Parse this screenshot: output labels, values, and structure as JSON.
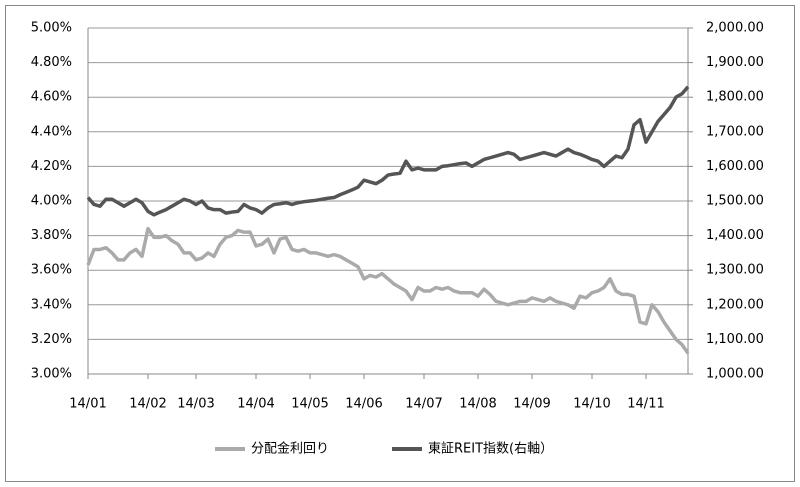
{
  "chart_data": {
    "type": "line",
    "categories": [
      "14/01",
      null,
      null,
      null,
      null,
      null,
      null,
      null,
      null,
      null,
      "14/02",
      null,
      null,
      null,
      null,
      null,
      null,
      null,
      "14/03",
      null,
      null,
      null,
      null,
      null,
      null,
      null,
      null,
      null,
      "14/04",
      null,
      null,
      null,
      null,
      null,
      null,
      null,
      null,
      "14/05",
      null,
      null,
      null,
      null,
      null,
      null,
      null,
      null,
      "14/06",
      null,
      null,
      null,
      null,
      null,
      null,
      null,
      null,
      null,
      "14/07",
      null,
      null,
      null,
      null,
      null,
      null,
      null,
      null,
      "14/08",
      null,
      null,
      null,
      null,
      null,
      null,
      null,
      null,
      "14/09",
      null,
      null,
      null,
      null,
      null,
      null,
      null,
      null,
      null,
      "14/10",
      null,
      null,
      null,
      null,
      null,
      null,
      null,
      null,
      "14/11",
      null,
      null,
      null,
      null,
      null,
      null,
      null
    ],
    "series": [
      {
        "name": "分配金利回り",
        "color": "#aaaaaa",
        "values": [
          3.63,
          3.72,
          3.72,
          3.73,
          3.7,
          3.66,
          3.66,
          3.7,
          3.72,
          3.68,
          3.84,
          3.79,
          3.79,
          3.8,
          3.77,
          3.75,
          3.7,
          3.7,
          3.66,
          3.67,
          3.7,
          3.68,
          3.75,
          3.79,
          3.8,
          3.83,
          3.82,
          3.82,
          3.74,
          3.75,
          3.78,
          3.7,
          3.78,
          3.79,
          3.72,
          3.71,
          3.72,
          3.7,
          3.7,
          3.69,
          3.68,
          3.69,
          3.68,
          3.66,
          3.64,
          3.62,
          3.55,
          3.57,
          3.56,
          3.58,
          3.55,
          3.52,
          3.5,
          3.48,
          3.43,
          3.5,
          3.48,
          3.48,
          3.5,
          3.49,
          3.5,
          3.48,
          3.47,
          3.47,
          3.47,
          3.45,
          3.49,
          3.46,
          3.42,
          3.41,
          3.4,
          3.41,
          3.42,
          3.42,
          3.44,
          3.43,
          3.42,
          3.44,
          3.42,
          3.41,
          3.4,
          3.38,
          3.45,
          3.44,
          3.47,
          3.48,
          3.5,
          3.55,
          3.48,
          3.46,
          3.46,
          3.45,
          3.3,
          3.29,
          3.4,
          3.36,
          3.3,
          3.25,
          3.2,
          3.17,
          3.12
        ]
      },
      {
        "name": "東証REIT指数(右軸）",
        "color": "#555555",
        "axis": "y2",
        "values": [
          1510,
          1490,
          1485,
          1505,
          1505,
          1495,
          1485,
          1495,
          1505,
          1495,
          1470,
          1460,
          1468,
          1475,
          1485,
          1495,
          1505,
          1500,
          1490,
          1500,
          1480,
          1475,
          1475,
          1465,
          1468,
          1470,
          1490,
          1480,
          1475,
          1465,
          1480,
          1490,
          1492,
          1495,
          1490,
          1495,
          1498,
          1500,
          1502,
          1505,
          1508,
          1510,
          1518,
          1525,
          1532,
          1540,
          1560,
          1555,
          1550,
          1560,
          1575,
          1578,
          1580,
          1615,
          1590,
          1595,
          1590,
          1590,
          1590,
          1600,
          1602,
          1605,
          1608,
          1610,
          1600,
          1610,
          1620,
          1625,
          1630,
          1635,
          1640,
          1635,
          1620,
          1625,
          1630,
          1635,
          1640,
          1635,
          1630,
          1640,
          1650,
          1640,
          1635,
          1628,
          1620,
          1615,
          1600,
          1615,
          1630,
          1625,
          1650,
          1720,
          1735,
          1670,
          1700,
          1730,
          1750,
          1770,
          1800,
          1810,
          1830
        ]
      }
    ],
    "ylim": [
      3,
      5
    ],
    "yticks": [
      {
        "value": 3,
        "label": "3.00%"
      },
      {
        "value": 3.2,
        "label": "3.20%"
      },
      {
        "value": 3.4,
        "label": "3.40%"
      },
      {
        "value": 3.6,
        "label": "3.60%"
      },
      {
        "value": 3.8,
        "label": "3.80%"
      },
      {
        "value": 4,
        "label": "4.00%"
      },
      {
        "value": 4.2,
        "label": "4.20%"
      },
      {
        "value": 4.4,
        "label": "4.40%"
      },
      {
        "value": 4.6,
        "label": "4.60%"
      },
      {
        "value": 4.8,
        "label": "4.80%"
      },
      {
        "value": 5,
        "label": "5.00%"
      }
    ],
    "y2lim": [
      1000,
      2000
    ],
    "y2ticks": [
      {
        "value": 1000,
        "label": "1,000.00"
      },
      {
        "value": 1100,
        "label": "1,100.00"
      },
      {
        "value": 1200,
        "label": "1,200.00"
      },
      {
        "value": 1300,
        "label": "1,300.00"
      },
      {
        "value": 1400,
        "label": "1,400.00"
      },
      {
        "value": 1500,
        "label": "1,500.00"
      },
      {
        "value": 1600,
        "label": "1,600.00"
      },
      {
        "value": 1700,
        "label": "1,700.00"
      },
      {
        "value": 1800,
        "label": "1,800.00"
      },
      {
        "value": 1900,
        "label": "1,900.00"
      },
      {
        "value": 2000,
        "label": "2,000.00"
      }
    ],
    "grid": true,
    "legend": "bottom"
  }
}
